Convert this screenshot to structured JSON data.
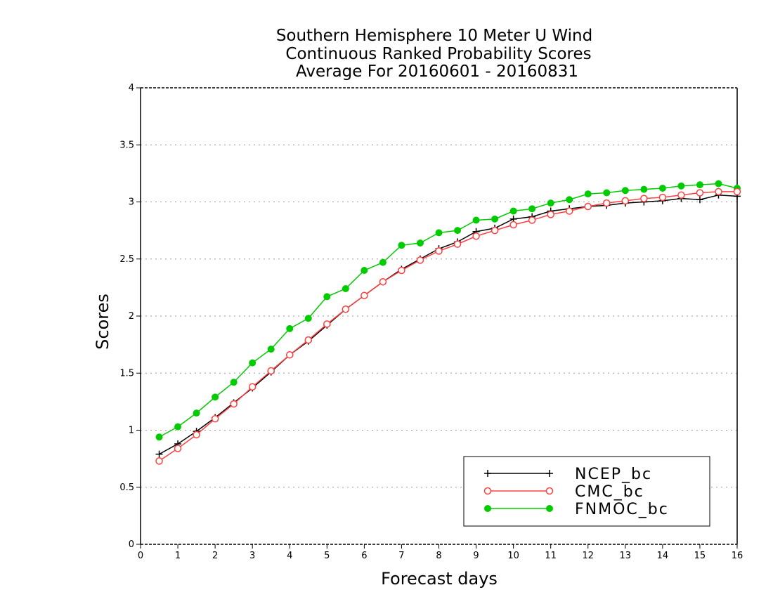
{
  "chart_data": {
    "type": "line",
    "title_lines": [
      "Southern Hemisphere 10 Meter U Wind",
      "Continuous Ranked Probability Scores",
      "Average For 20160601 - 20160831"
    ],
    "xlabel": "Forecast days",
    "ylabel": "Scores",
    "xlim": [
      0,
      16
    ],
    "ylim": [
      0,
      4
    ],
    "x_ticks": [
      "0",
      "1",
      "2",
      "3",
      "4",
      "5",
      "6",
      "7",
      "8",
      "9",
      "10",
      "11",
      "12",
      "13",
      "14",
      "15",
      "16"
    ],
    "y_ticks": [
      "0",
      "0.5",
      "1",
      "1.5",
      "2",
      "2.5",
      "3",
      "3.5",
      "4"
    ],
    "grid": true,
    "legend_position": "bottom-right",
    "x": [
      0.5,
      1,
      1.5,
      2,
      2.5,
      3,
      3.5,
      4,
      4.5,
      5,
      5.5,
      6,
      6.5,
      7,
      7.5,
      8,
      8.5,
      9,
      9.5,
      10,
      10.5,
      11,
      11.5,
      12,
      12.5,
      13,
      13.5,
      14,
      14.5,
      15,
      15.5,
      16
    ],
    "series": [
      {
        "name": "NCEP_bc",
        "color": "#000000",
        "marker": "plus",
        "values": [
          0.79,
          0.88,
          0.99,
          1.11,
          1.24,
          1.37,
          1.51,
          1.66,
          1.78,
          1.92,
          2.06,
          2.18,
          2.3,
          2.41,
          2.5,
          2.59,
          2.65,
          2.74,
          2.77,
          2.85,
          2.87,
          2.92,
          2.94,
          2.96,
          2.97,
          2.99,
          3.0,
          3.01,
          3.03,
          3.02,
          3.06,
          3.05
        ]
      },
      {
        "name": "CMC_bc",
        "color": "#ff4040",
        "marker": "open-circle",
        "values": [
          0.73,
          0.84,
          0.96,
          1.1,
          1.23,
          1.38,
          1.52,
          1.66,
          1.79,
          1.93,
          2.06,
          2.18,
          2.3,
          2.4,
          2.49,
          2.57,
          2.63,
          2.7,
          2.75,
          2.8,
          2.84,
          2.89,
          2.92,
          2.96,
          2.99,
          3.01,
          3.03,
          3.04,
          3.06,
          3.08,
          3.09,
          3.09
        ]
      },
      {
        "name": "FNMOC_bc",
        "color": "#00cc00",
        "marker": "filled-circle",
        "values": [
          0.94,
          1.03,
          1.15,
          1.29,
          1.42,
          1.59,
          1.71,
          1.89,
          1.98,
          2.17,
          2.24,
          2.4,
          2.47,
          2.62,
          2.64,
          2.73,
          2.75,
          2.84,
          2.85,
          2.92,
          2.94,
          2.99,
          3.02,
          3.07,
          3.08,
          3.1,
          3.11,
          3.12,
          3.14,
          3.15,
          3.16,
          3.12
        ]
      }
    ]
  }
}
